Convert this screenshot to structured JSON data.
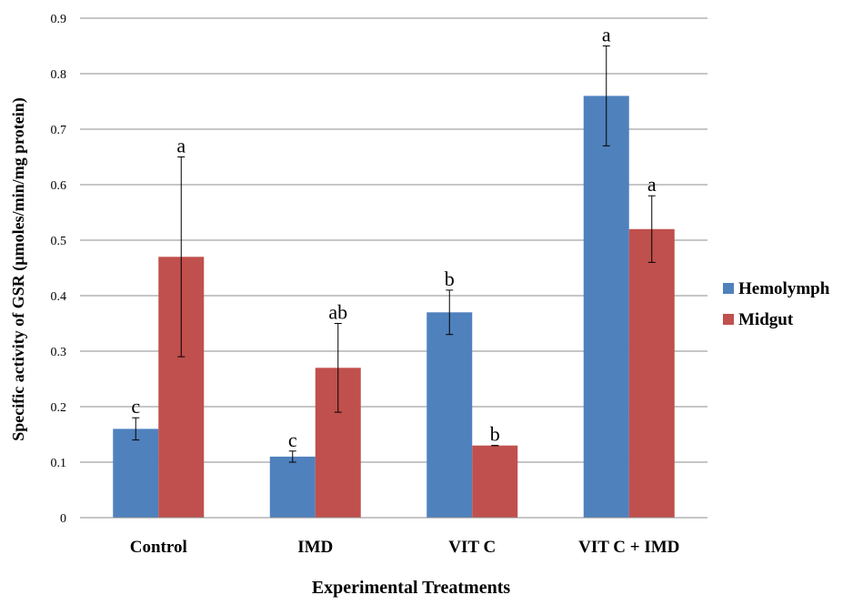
{
  "chart_data": {
    "type": "bar",
    "categories": [
      "Control",
      "IMD",
      "VIT C",
      "VIT C + IMD"
    ],
    "series": [
      {
        "name": "Hemolymph",
        "color": "#4f81bd",
        "values": [
          0.16,
          0.11,
          0.37,
          0.76
        ],
        "errors": [
          0.02,
          0.01,
          0.04,
          0.09
        ],
        "significance": [
          "c",
          "c",
          "b",
          "a"
        ]
      },
      {
        "name": "Midgut",
        "color": "#c0504d",
        "values": [
          0.47,
          0.27,
          0.13,
          0.52
        ],
        "errors": [
          0.18,
          0.08,
          0.0,
          0.06
        ],
        "significance": [
          "a",
          "ab",
          "b",
          "a"
        ]
      }
    ],
    "title": "",
    "xlabel": "Experimental Treatments",
    "ylabel": "Specific activity of GSR (µmoles/min/mg protein)",
    "ylim": [
      0,
      0.9
    ],
    "yticks": [
      "0",
      "0.1",
      "0.2",
      "0.3",
      "0.4",
      "0.5",
      "0.6",
      "0.7",
      "0.8",
      "0.9"
    ],
    "grid": true,
    "legend_position": "right"
  }
}
